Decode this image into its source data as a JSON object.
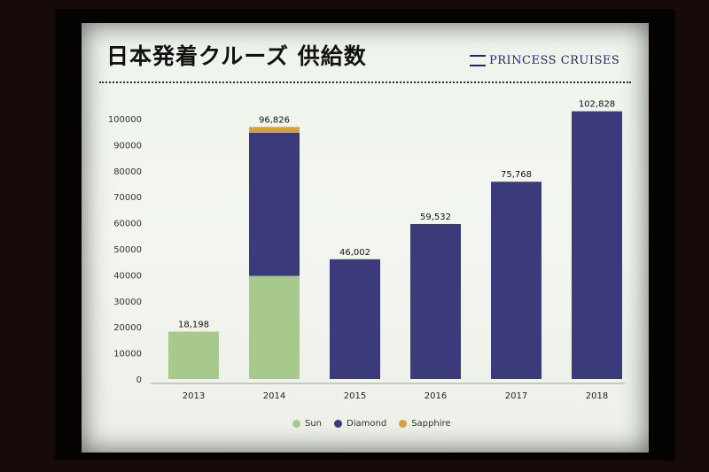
{
  "slide": {
    "title": "日本発着クルーズ 供給数",
    "brand": "PRINCESS CRUISES"
  },
  "chart_data": {
    "type": "bar",
    "stacked": true,
    "categories": [
      "2013",
      "2014",
      "2015",
      "2016",
      "2017",
      "2018"
    ],
    "series": [
      {
        "name": "Sun",
        "color": "#a8c98c",
        "values": [
          18198,
          39600,
          0,
          0,
          0,
          0
        ]
      },
      {
        "name": "Diamond",
        "color": "#3b3a7a",
        "values": [
          0,
          55000,
          46002,
          59532,
          75768,
          102828
        ]
      },
      {
        "name": "Sapphire",
        "color": "#d9a040",
        "values": [
          0,
          2226,
          0,
          0,
          0,
          0
        ]
      }
    ],
    "totals_labels": [
      "18,198",
      "96,826",
      "46,002",
      "59,532",
      "75,768",
      "102,828"
    ],
    "y_ticks": [
      0,
      10000,
      20000,
      30000,
      40000,
      50000,
      60000,
      70000,
      80000,
      90000,
      100000
    ],
    "ylim": [
      0,
      100000
    ],
    "legend_position": "bottom-center",
    "grid": false
  }
}
